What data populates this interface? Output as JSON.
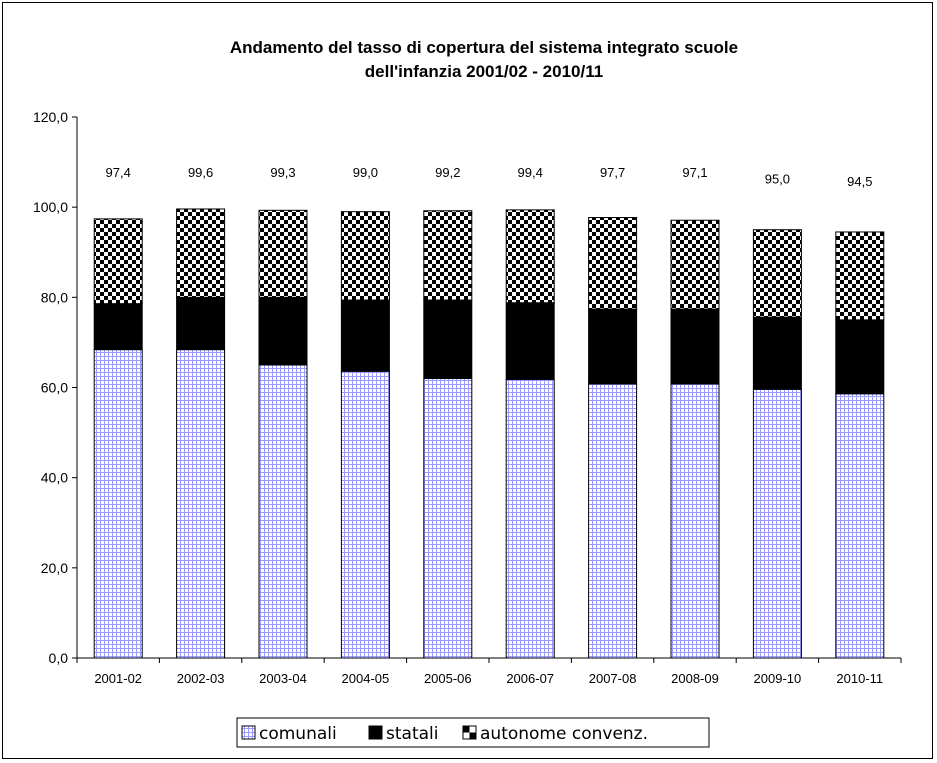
{
  "chart_data": {
    "type": "bar",
    "stacked": true,
    "title_lines": [
      "Andamento del tasso di copertura del sistema integrato scuole",
      "dell'infanzia  2001/02 - 2010/11"
    ],
    "categories": [
      "2001-02",
      "2002-03",
      "2003-04",
      "2004-05",
      "2005-06",
      "2006-07",
      "2007-08",
      "2008-09",
      "2009-10",
      "2010-11"
    ],
    "series": [
      {
        "name": "comunali",
        "values": [
          68.4,
          68.4,
          65.0,
          63.6,
          62.0,
          61.8,
          60.8,
          60.8,
          59.6,
          58.6
        ]
      },
      {
        "name": "statali",
        "values": [
          10.2,
          11.6,
          15.0,
          15.8,
          17.4,
          17.0,
          16.6,
          16.6,
          16.0,
          16.4
        ]
      },
      {
        "name": "autonome convenz.",
        "values": [
          18.8,
          19.6,
          19.3,
          19.6,
          19.8,
          20.6,
          20.3,
          19.7,
          19.4,
          19.5
        ]
      }
    ],
    "totals": [
      97.4,
      99.6,
      99.3,
      99.0,
      99.2,
      99.4,
      97.7,
      97.1,
      95.0,
      94.5
    ],
    "total_labels": [
      "97,4",
      "99,6",
      "99,3",
      "99,0",
      "99,2",
      "99,4",
      "97,7",
      "97,1",
      "95,0",
      "94,5"
    ],
    "ylim": [
      0,
      120
    ],
    "yticks": [
      0,
      20,
      40,
      60,
      80,
      100,
      120
    ],
    "ytick_labels": [
      "0,0",
      "20,0",
      "40,0",
      "60,0",
      "80,0",
      "100,0",
      "120,0"
    ],
    "grid": false,
    "legend_position": "bottom",
    "colors": {
      "comunali": "#9999ff",
      "statali": "#000000",
      "autonome convenz.": "#000000"
    }
  }
}
